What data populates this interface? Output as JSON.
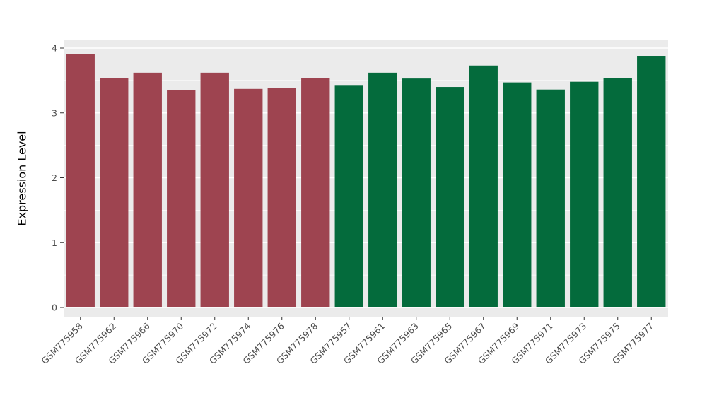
{
  "chart_data": {
    "type": "bar",
    "title": "",
    "xlabel": "",
    "ylabel": "Expression Level",
    "ylim": [
      0,
      4.12
    ],
    "yticks": [
      0,
      1,
      2,
      3,
      4
    ],
    "grid": "on",
    "legend_position": "none",
    "categories": [
      "GSM775958",
      "GSM775962",
      "GSM775966",
      "GSM775970",
      "GSM775972",
      "GSM775974",
      "GSM775976",
      "GSM775978",
      "GSM775957",
      "GSM775961",
      "GSM775963",
      "GSM775965",
      "GSM775967",
      "GSM775969",
      "GSM775971",
      "GSM775973",
      "GSM775975",
      "GSM775977"
    ],
    "values": [
      3.91,
      3.54,
      3.62,
      3.35,
      3.62,
      3.37,
      3.38,
      3.54,
      3.43,
      3.62,
      3.53,
      3.4,
      3.73,
      3.47,
      3.36,
      3.48,
      3.54,
      3.88
    ],
    "bar_groups": [
      0,
      0,
      0,
      0,
      0,
      0,
      0,
      0,
      1,
      1,
      1,
      1,
      1,
      1,
      1,
      1,
      1,
      1
    ],
    "group_colors": [
      "#9E4450",
      "#046B3C"
    ],
    "style": {
      "panel_bg": "#EBEBEB",
      "grid_color": "#FFFFFF",
      "tick_label_color": "#4D4D4D",
      "tick_mark_color": "#333333",
      "axis_title_color": "#000000",
      "background": "#FFFFFF"
    }
  }
}
